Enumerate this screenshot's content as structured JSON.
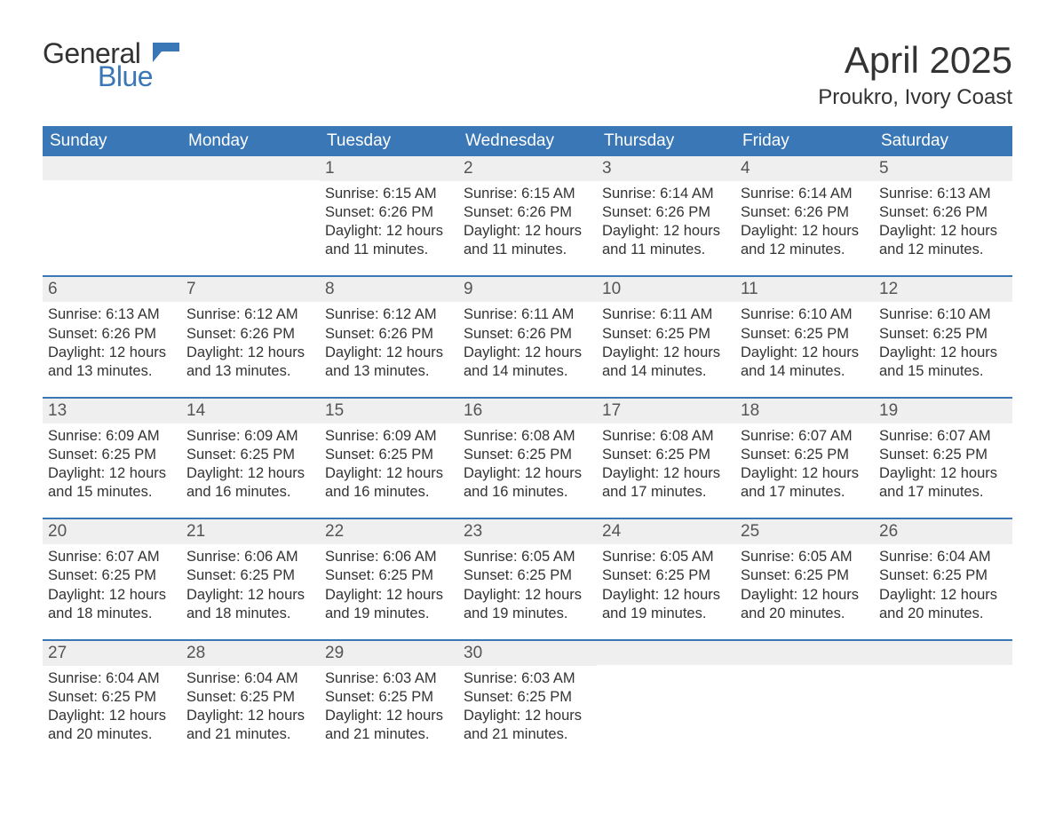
{
  "logo": {
    "word1": "General",
    "word2": "Blue",
    "text_color": "#333333",
    "accent_color": "#3a77b7"
  },
  "title": {
    "month_year": "April 2025",
    "location": "Proukro, Ivory Coast",
    "title_fontsize": 42,
    "location_fontsize": 24,
    "text_color": "#333333"
  },
  "calendar": {
    "type": "table",
    "header_bg": "#3a77b7",
    "header_text_color": "#ffffff",
    "row_separator_color": "#3a77b7",
    "daynum_bg": "#efefef",
    "body_text_color": "#333333",
    "body_fontsize": 16.5,
    "header_fontsize": 19,
    "day_names": [
      "Sunday",
      "Monday",
      "Tuesday",
      "Wednesday",
      "Thursday",
      "Friday",
      "Saturday"
    ],
    "labels": {
      "sunrise_prefix": "Sunrise: ",
      "sunset_prefix": "Sunset: ",
      "daylight_prefix": "Daylight: "
    },
    "weeks": [
      [
        null,
        null,
        {
          "day": "1",
          "sunrise": "6:15 AM",
          "sunset": "6:26 PM",
          "daylight": "12 hours and 11 minutes."
        },
        {
          "day": "2",
          "sunrise": "6:15 AM",
          "sunset": "6:26 PM",
          "daylight": "12 hours and 11 minutes."
        },
        {
          "day": "3",
          "sunrise": "6:14 AM",
          "sunset": "6:26 PM",
          "daylight": "12 hours and 11 minutes."
        },
        {
          "day": "4",
          "sunrise": "6:14 AM",
          "sunset": "6:26 PM",
          "daylight": "12 hours and 12 minutes."
        },
        {
          "day": "5",
          "sunrise": "6:13 AM",
          "sunset": "6:26 PM",
          "daylight": "12 hours and 12 minutes."
        }
      ],
      [
        {
          "day": "6",
          "sunrise": "6:13 AM",
          "sunset": "6:26 PM",
          "daylight": "12 hours and 13 minutes."
        },
        {
          "day": "7",
          "sunrise": "6:12 AM",
          "sunset": "6:26 PM",
          "daylight": "12 hours and 13 minutes."
        },
        {
          "day": "8",
          "sunrise": "6:12 AM",
          "sunset": "6:26 PM",
          "daylight": "12 hours and 13 minutes."
        },
        {
          "day": "9",
          "sunrise": "6:11 AM",
          "sunset": "6:26 PM",
          "daylight": "12 hours and 14 minutes."
        },
        {
          "day": "10",
          "sunrise": "6:11 AM",
          "sunset": "6:25 PM",
          "daylight": "12 hours and 14 minutes."
        },
        {
          "day": "11",
          "sunrise": "6:10 AM",
          "sunset": "6:25 PM",
          "daylight": "12 hours and 14 minutes."
        },
        {
          "day": "12",
          "sunrise": "6:10 AM",
          "sunset": "6:25 PM",
          "daylight": "12 hours and 15 minutes."
        }
      ],
      [
        {
          "day": "13",
          "sunrise": "6:09 AM",
          "sunset": "6:25 PM",
          "daylight": "12 hours and 15 minutes."
        },
        {
          "day": "14",
          "sunrise": "6:09 AM",
          "sunset": "6:25 PM",
          "daylight": "12 hours and 16 minutes."
        },
        {
          "day": "15",
          "sunrise": "6:09 AM",
          "sunset": "6:25 PM",
          "daylight": "12 hours and 16 minutes."
        },
        {
          "day": "16",
          "sunrise": "6:08 AM",
          "sunset": "6:25 PM",
          "daylight": "12 hours and 16 minutes."
        },
        {
          "day": "17",
          "sunrise": "6:08 AM",
          "sunset": "6:25 PM",
          "daylight": "12 hours and 17 minutes."
        },
        {
          "day": "18",
          "sunrise": "6:07 AM",
          "sunset": "6:25 PM",
          "daylight": "12 hours and 17 minutes."
        },
        {
          "day": "19",
          "sunrise": "6:07 AM",
          "sunset": "6:25 PM",
          "daylight": "12 hours and 17 minutes."
        }
      ],
      [
        {
          "day": "20",
          "sunrise": "6:07 AM",
          "sunset": "6:25 PM",
          "daylight": "12 hours and 18 minutes."
        },
        {
          "day": "21",
          "sunrise": "6:06 AM",
          "sunset": "6:25 PM",
          "daylight": "12 hours and 18 minutes."
        },
        {
          "day": "22",
          "sunrise": "6:06 AM",
          "sunset": "6:25 PM",
          "daylight": "12 hours and 19 minutes."
        },
        {
          "day": "23",
          "sunrise": "6:05 AM",
          "sunset": "6:25 PM",
          "daylight": "12 hours and 19 minutes."
        },
        {
          "day": "24",
          "sunrise": "6:05 AM",
          "sunset": "6:25 PM",
          "daylight": "12 hours and 19 minutes."
        },
        {
          "day": "25",
          "sunrise": "6:05 AM",
          "sunset": "6:25 PM",
          "daylight": "12 hours and 20 minutes."
        },
        {
          "day": "26",
          "sunrise": "6:04 AM",
          "sunset": "6:25 PM",
          "daylight": "12 hours and 20 minutes."
        }
      ],
      [
        {
          "day": "27",
          "sunrise": "6:04 AM",
          "sunset": "6:25 PM",
          "daylight": "12 hours and 20 minutes."
        },
        {
          "day": "28",
          "sunrise": "6:04 AM",
          "sunset": "6:25 PM",
          "daylight": "12 hours and 21 minutes."
        },
        {
          "day": "29",
          "sunrise": "6:03 AM",
          "sunset": "6:25 PM",
          "daylight": "12 hours and 21 minutes."
        },
        {
          "day": "30",
          "sunrise": "6:03 AM",
          "sunset": "6:25 PM",
          "daylight": "12 hours and 21 minutes."
        },
        null,
        null,
        null
      ]
    ]
  }
}
